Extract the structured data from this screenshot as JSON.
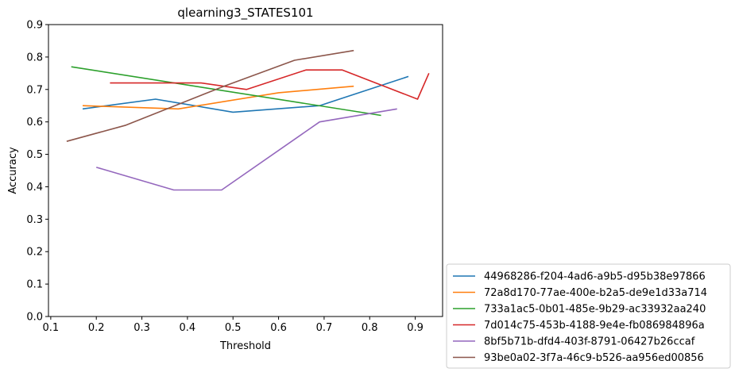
{
  "chart_data": {
    "type": "line",
    "title": "qlearning3_STATES101",
    "xlabel": "Threshold",
    "ylabel": "Accuracy",
    "xlim": [
      0.095,
      0.96
    ],
    "ylim": [
      0.0,
      0.9
    ],
    "xticks": [
      0.1,
      0.2,
      0.3,
      0.4,
      0.5,
      0.6,
      0.7,
      0.8,
      0.9
    ],
    "yticks": [
      0.0,
      0.1,
      0.2,
      0.3,
      0.4,
      0.5,
      0.6,
      0.7,
      0.8,
      0.9
    ],
    "grid": false,
    "legend_position": "outside-lower-right",
    "series": [
      {
        "name": "44968286-f204-4ad6-a9b5-d95b38e97866",
        "color": "#1f77b4",
        "x": [
          0.17,
          0.33,
          0.5,
          0.69,
          0.885
        ],
        "y": [
          0.64,
          0.67,
          0.63,
          0.65,
          0.74
        ]
      },
      {
        "name": "72a8d170-77ae-400e-b2a5-de9e1d33a714",
        "color": "#ff7f0e",
        "x": [
          0.17,
          0.38,
          0.6,
          0.765
        ],
        "y": [
          0.65,
          0.64,
          0.69,
          0.71
        ]
      },
      {
        "name": "733a1ac5-0b01-485e-9b29-ac33932aa240",
        "color": "#2ca02c",
        "x": [
          0.145,
          0.825
        ],
        "y": [
          0.77,
          0.62
        ]
      },
      {
        "name": "7d014c75-453b-4188-9e4e-fb086984896a",
        "color": "#d62728",
        "x": [
          0.23,
          0.43,
          0.53,
          0.66,
          0.74,
          0.905,
          0.93
        ],
        "y": [
          0.72,
          0.72,
          0.7,
          0.76,
          0.76,
          0.67,
          0.75
        ]
      },
      {
        "name": "8bf5b71b-dfd4-403f-8791-06427b26ccaf",
        "color": "#9467bd",
        "x": [
          0.2,
          0.37,
          0.475,
          0.69,
          0.86
        ],
        "y": [
          0.46,
          0.39,
          0.39,
          0.6,
          0.64
        ]
      },
      {
        "name": "93be0a02-3f7a-46c9-b526-aa956ed00856",
        "color": "#8c564b",
        "x": [
          0.135,
          0.265,
          0.48,
          0.635,
          0.765
        ],
        "y": [
          0.54,
          0.59,
          0.71,
          0.79,
          0.82
        ]
      }
    ]
  }
}
